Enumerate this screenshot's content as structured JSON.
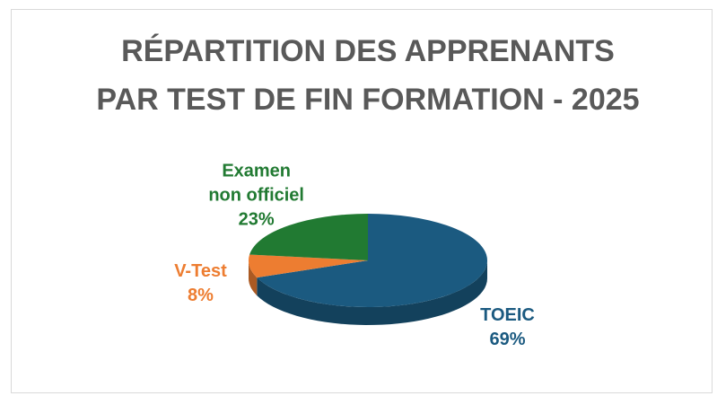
{
  "chart_data": {
    "type": "pie3d",
    "title": "RÉPARTITION DES APPRENANTS PAR TEST DE FIN FORMATION - 2025",
    "categories": [
      "TOEIC",
      "V-Test",
      "Examen non officiel"
    ],
    "values": [
      69,
      8,
      23
    ],
    "value_labels": [
      "69%",
      "8%",
      "23%"
    ],
    "colors": [
      "#1b5a80",
      "#ed7d31",
      "#217a32"
    ]
  }
}
